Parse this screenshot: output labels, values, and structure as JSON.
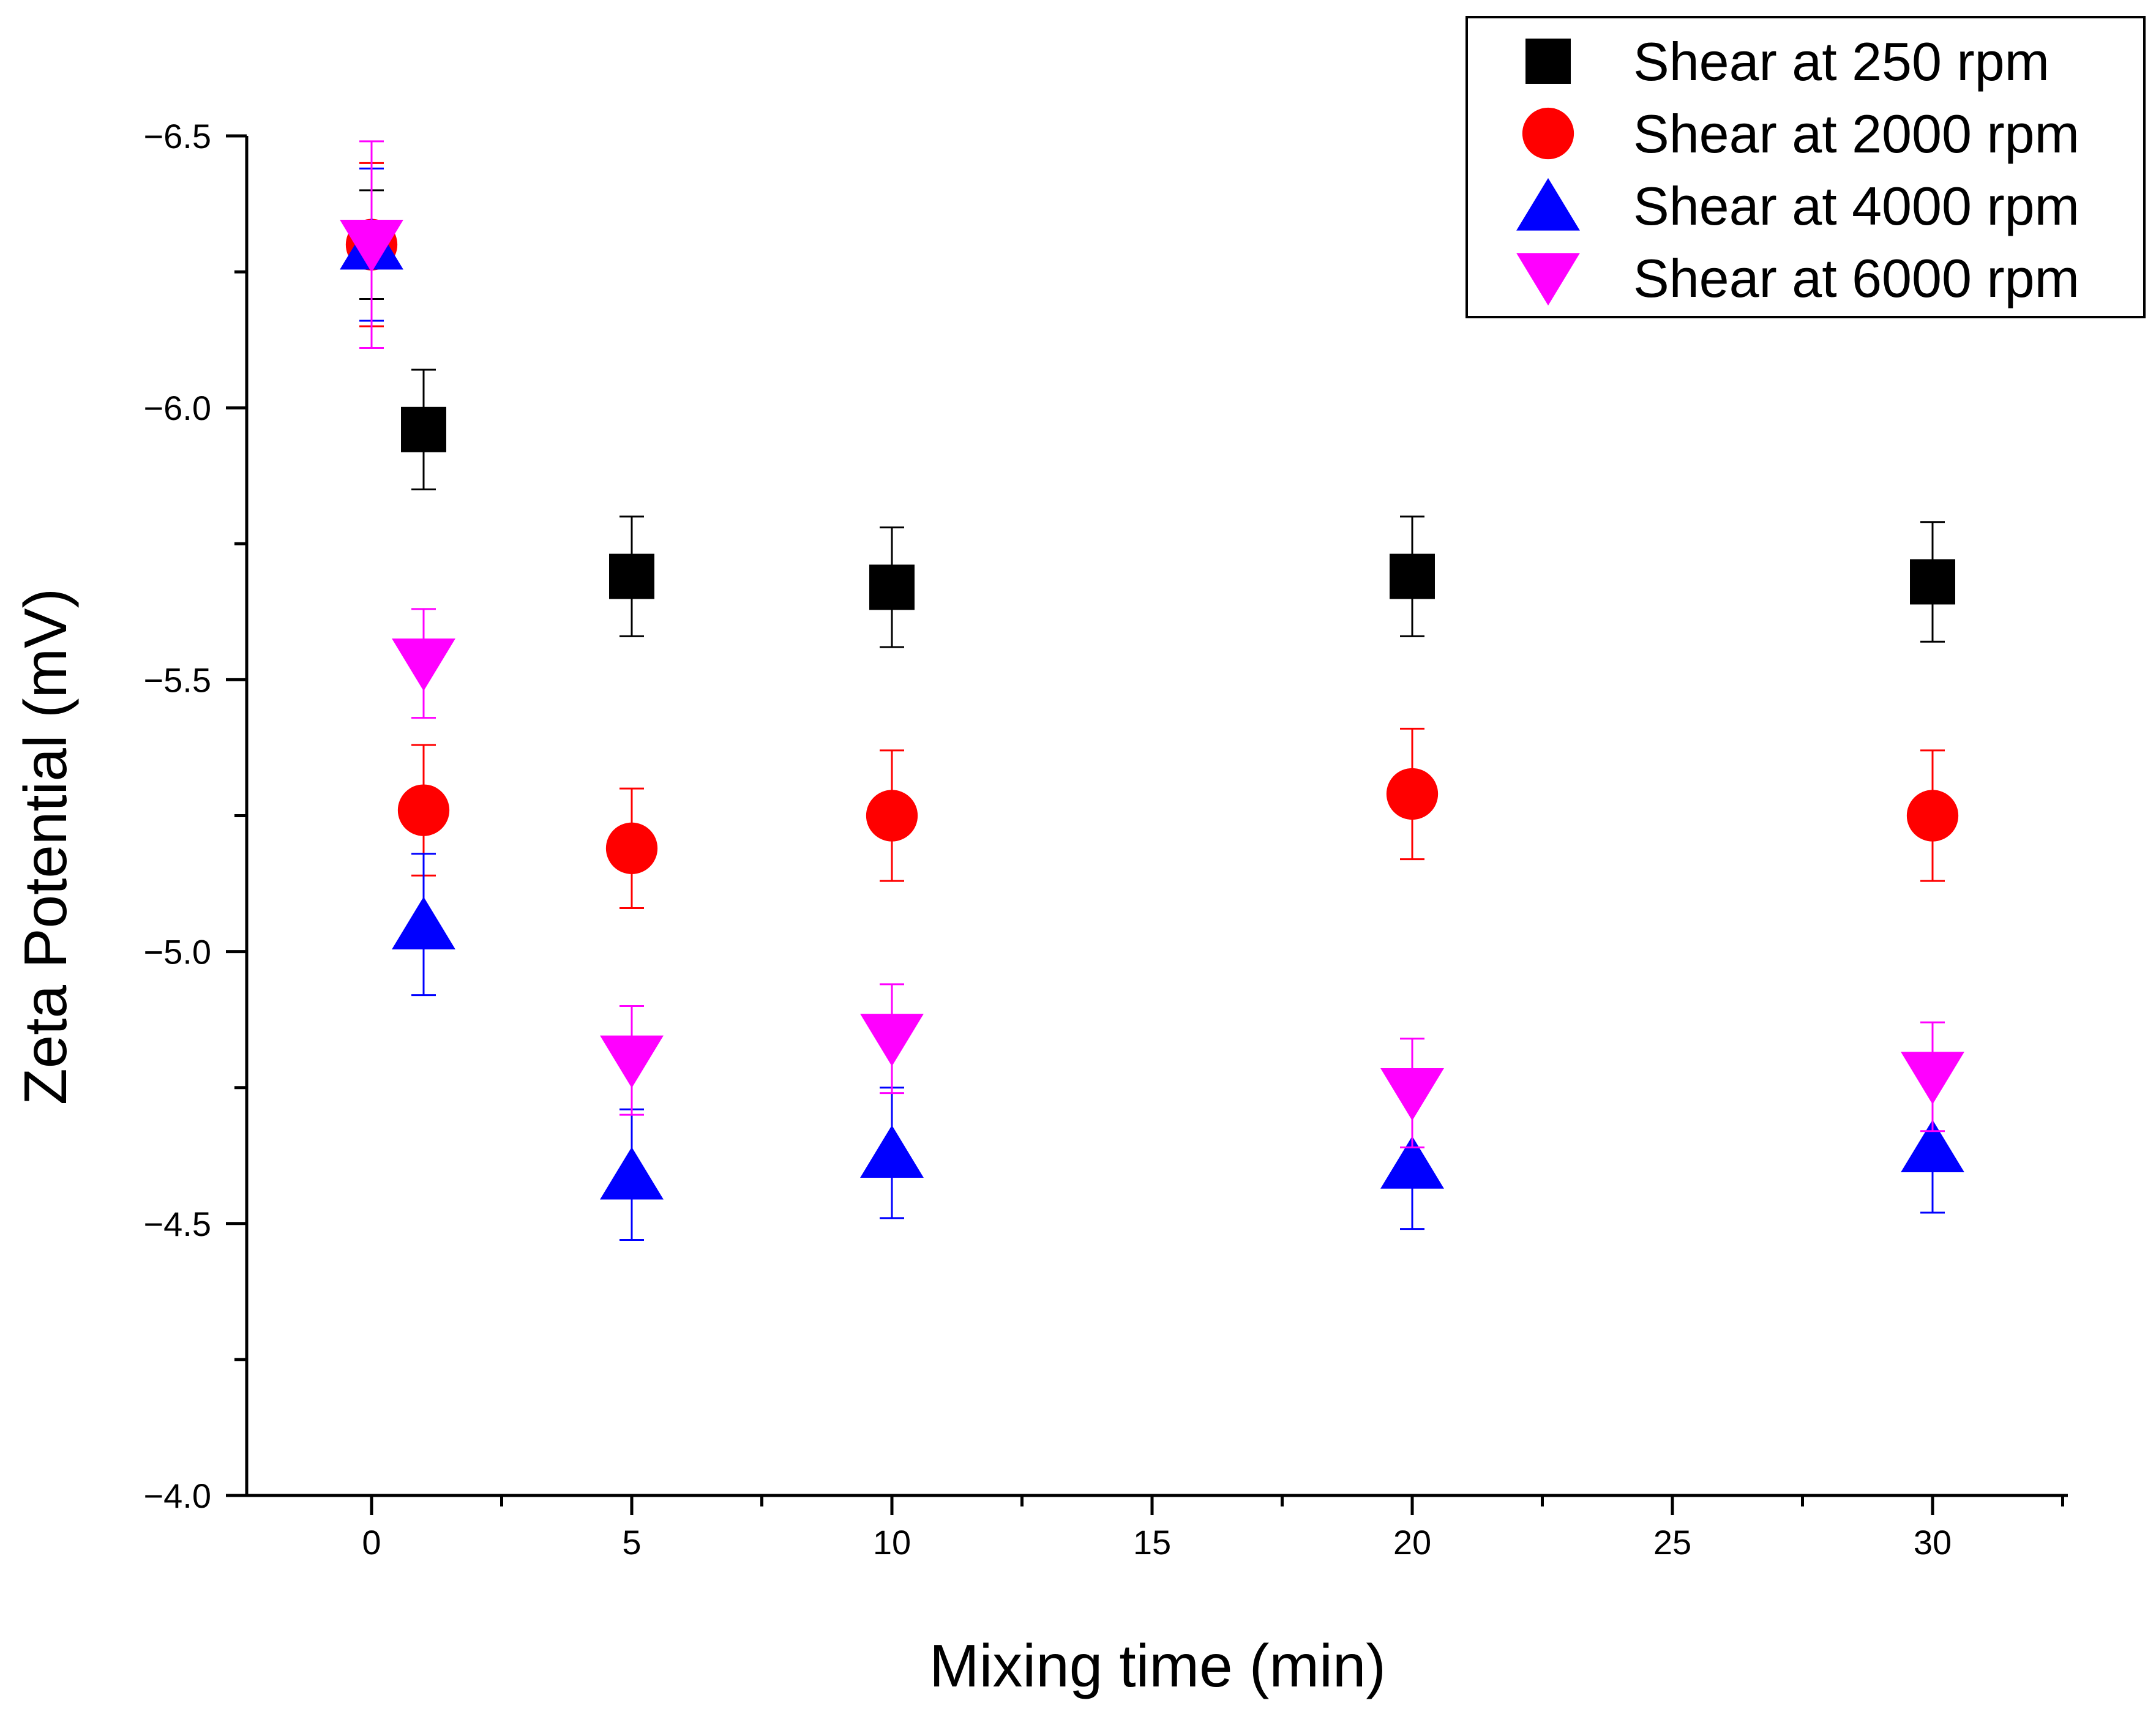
{
  "chart_data": {
    "type": "scatter",
    "title": "",
    "xlabel": "Mixing time (min)",
    "ylabel": "Zeta Potential (mV)",
    "xlim": [
      -2.4,
      32.6
    ],
    "ylim": [
      -6.5,
      -4.0
    ],
    "y_axis_reversed": true,
    "x_major_ticks": [
      0,
      5,
      10,
      15,
      20,
      25,
      30
    ],
    "x_tick_labels": [
      "0",
      "5",
      "10",
      "15",
      "20",
      "25",
      "30"
    ],
    "y_major_ticks": [
      -6.5,
      -6.0,
      -5.5,
      -5.0,
      -4.5,
      -4.0
    ],
    "y_tick_labels": [
      "−6.5",
      "−6.0",
      "−5.5",
      "−5.0",
      "−4.5",
      "−4.0"
    ],
    "grid": false,
    "legend_position": "top-right",
    "x": [
      0,
      1,
      5,
      10,
      20,
      30
    ],
    "series": [
      {
        "name": "Shear at 250 rpm",
        "marker": "square",
        "color": "#000000",
        "values": [
          -6.3,
          -5.96,
          -5.69,
          -5.67,
          -5.69,
          -5.68
        ],
        "errors": [
          0.1,
          0.11,
          0.11,
          0.11,
          0.11,
          0.11
        ]
      },
      {
        "name": "Shear at 2000 rpm",
        "marker": "circle",
        "color": "#ff0000",
        "values": [
          -6.3,
          -5.26,
          -5.19,
          -5.25,
          -5.29,
          -5.25
        ],
        "errors": [
          0.15,
          0.12,
          0.11,
          0.12,
          0.12,
          0.12
        ]
      },
      {
        "name": "Shear at 4000 rpm",
        "marker": "triangle-up",
        "color": "#0000ff",
        "values": [
          -6.3,
          -5.05,
          -4.59,
          -4.63,
          -4.61,
          -4.64
        ],
        "errors": [
          0.14,
          0.13,
          0.12,
          0.12,
          0.12,
          0.12
        ]
      },
      {
        "name": "Shear at 6000 rpm",
        "marker": "triangle-down",
        "color": "#ff00ff",
        "values": [
          -6.3,
          -5.53,
          -4.8,
          -4.84,
          -4.74,
          -4.77
        ],
        "errors": [
          0.19,
          0.1,
          0.1,
          0.1,
          0.1,
          0.1
        ]
      }
    ]
  }
}
